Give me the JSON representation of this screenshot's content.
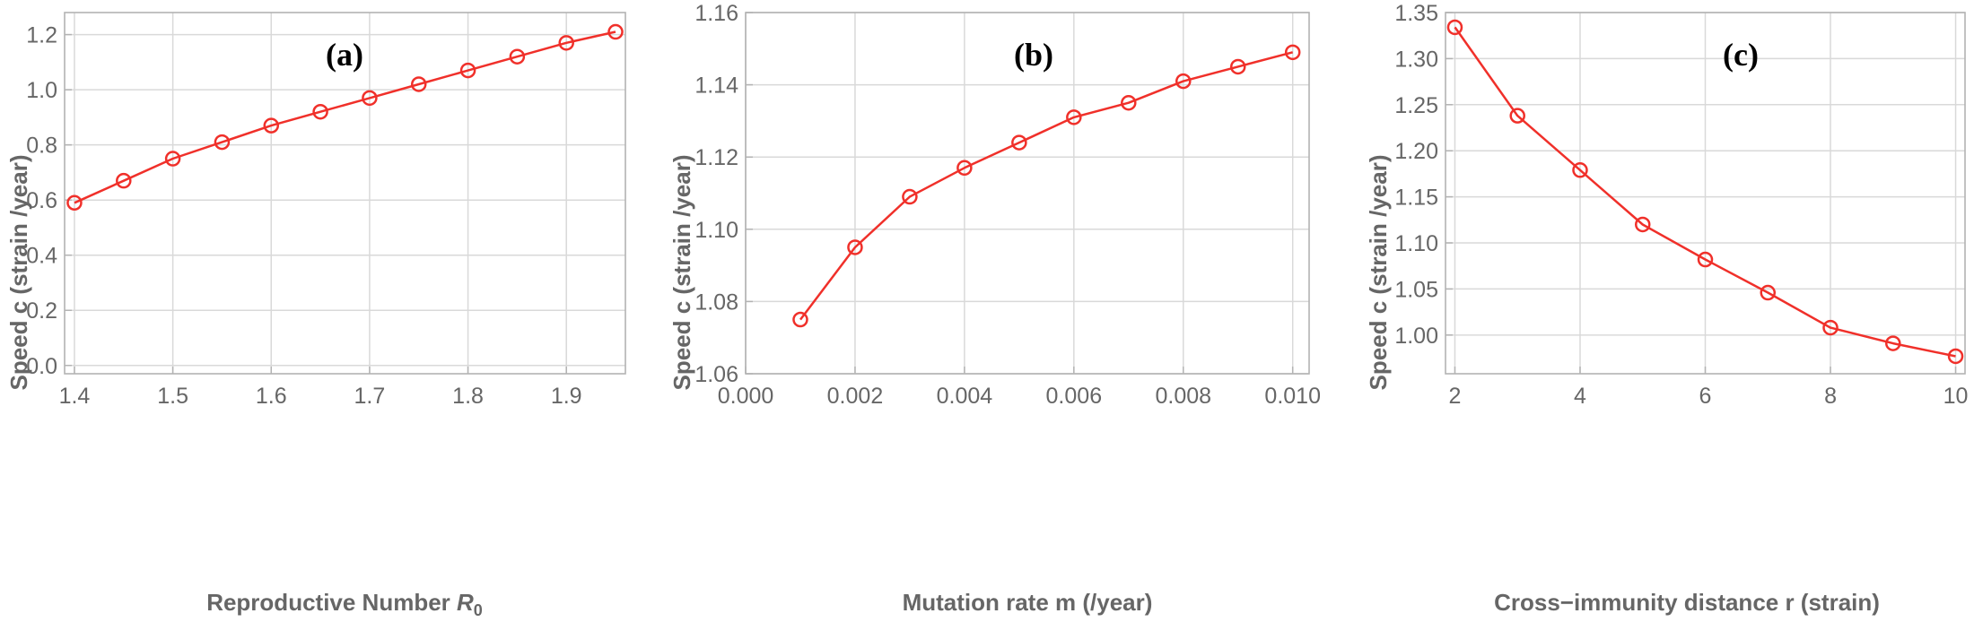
{
  "colors": {
    "series": "#f0302a",
    "frame": "#b3b3b3",
    "grid": "#d9d9d9",
    "tick_text": "#666666",
    "panel_tag": "#000000"
  },
  "chart_data": [
    {
      "type": "line",
      "panel_tag": "(a)",
      "xlabel": "Reproductive Number ",
      "xlabel_symbol": "R",
      "xlabel_subscript": "0",
      "ylabel": "Speed  c (strain /year)",
      "xlim": [
        1.39,
        1.96
      ],
      "ylim": [
        -0.03,
        1.28
      ],
      "xticks": [
        1.4,
        1.5,
        1.6,
        1.7,
        1.8,
        1.9
      ],
      "xtick_labels": [
        "1.4",
        "1.5",
        "1.6",
        "1.7",
        "1.8",
        "1.9"
      ],
      "yticks": [
        0.0,
        0.2,
        0.4,
        0.6,
        0.8,
        1.0,
        1.2
      ],
      "ytick_labels": [
        "0.0",
        "0.2",
        "0.4",
        "0.6",
        "0.8",
        "1.0",
        "1.2"
      ],
      "grid": true,
      "marker": "open-circle",
      "x": [
        1.4,
        1.45,
        1.5,
        1.55,
        1.6,
        1.65,
        1.7,
        1.75,
        1.8,
        1.85,
        1.9,
        1.95
      ],
      "y": [
        0.59,
        0.67,
        0.75,
        0.81,
        0.87,
        0.92,
        0.97,
        1.02,
        1.07,
        1.12,
        1.17,
        1.21
      ]
    },
    {
      "type": "line",
      "panel_tag": "(b)",
      "xlabel": "Mutation rate m (/year)",
      "ylabel": "Speed  c (strain /year)",
      "xlim": [
        0.0,
        0.0103
      ],
      "ylim": [
        1.06,
        1.16
      ],
      "xticks": [
        0.0,
        0.002,
        0.004,
        0.006,
        0.008,
        0.01
      ],
      "xtick_labels": [
        "0.000",
        "0.002",
        "0.004",
        "0.006",
        "0.008",
        "0.010"
      ],
      "yticks": [
        1.06,
        1.08,
        1.1,
        1.12,
        1.14,
        1.16
      ],
      "ytick_labels": [
        "1.06",
        "1.08",
        "1.10",
        "1.12",
        "1.14",
        "1.16"
      ],
      "grid": true,
      "marker": "open-circle",
      "x": [
        0.001,
        0.002,
        0.003,
        0.004,
        0.005,
        0.006,
        0.007,
        0.008,
        0.009,
        0.01
      ],
      "y": [
        1.075,
        1.095,
        1.109,
        1.117,
        1.124,
        1.131,
        1.135,
        1.141,
        1.145,
        1.149
      ]
    },
    {
      "type": "line",
      "panel_tag": "(c)",
      "xlabel": "Cross−immunity distance r (strain)",
      "ylabel": "Speed  c (strain /year)",
      "xlim": [
        1.85,
        10.15
      ],
      "ylim": [
        0.958,
        1.35
      ],
      "xticks": [
        2,
        4,
        6,
        8,
        10
      ],
      "xtick_labels": [
        "2",
        "4",
        "6",
        "8",
        "10"
      ],
      "yticks": [
        1.0,
        1.05,
        1.1,
        1.15,
        1.2,
        1.25,
        1.3,
        1.35
      ],
      "ytick_labels": [
        "1.00",
        "1.05",
        "1.10",
        "1.15",
        "1.20",
        "1.25",
        "1.30",
        "1.35"
      ],
      "grid": true,
      "marker": "open-circle",
      "x": [
        2,
        3,
        4,
        5,
        6,
        7,
        8,
        9,
        10
      ],
      "y": [
        1.334,
        1.238,
        1.179,
        1.12,
        1.082,
        1.046,
        1.008,
        0.991,
        0.977
      ]
    }
  ]
}
